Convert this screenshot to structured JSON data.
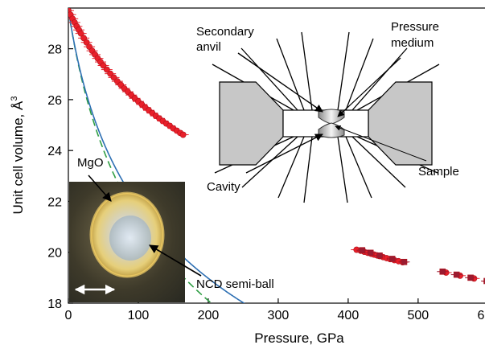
{
  "chart_data": {
    "type": "scatter",
    "xlabel": "Pressure, GPa",
    "ylabel": "Unit cell volume, Å",
    "ylabel_sup": "3",
    "xlim": [
      0,
      660
    ],
    "ylim": [
      18,
      29.6
    ],
    "xticks": [
      0,
      100,
      200,
      300,
      400,
      500,
      600
    ],
    "yticks": [
      18,
      20,
      22,
      24,
      26,
      28
    ],
    "xtick_labels": [
      "0",
      "100",
      "200",
      "300",
      "400",
      "500",
      "600"
    ],
    "ytick_labels": [
      "18",
      "20",
      "22",
      "24",
      "26",
      "28"
    ],
    "eos_params": {
      "V0": 29.55,
      "K0": 162,
      "Kp": 4.9
    },
    "dashed_params": {
      "V0": 29.55,
      "K0": 162,
      "Kp": 4.0
    },
    "series": [
      {
        "marker": "circle",
        "color": "#e8202a",
        "x": [
          0,
          3,
          6,
          9,
          12,
          15,
          18,
          22,
          26,
          30,
          34,
          38,
          42,
          46,
          50,
          55,
          60,
          65,
          70,
          75,
          80,
          85,
          90,
          95,
          100,
          105,
          110,
          115,
          120,
          125,
          130,
          135,
          140,
          145,
          150,
          155,
          160,
          164
        ],
        "y": [
          29.5,
          29.34,
          29.18,
          29.03,
          28.88,
          28.74,
          28.6,
          28.42,
          28.25,
          28.08,
          27.92,
          27.77,
          27.62,
          27.48,
          27.34,
          27.18,
          27.02,
          26.87,
          26.72,
          26.58,
          26.44,
          26.31,
          26.18,
          26.05,
          25.93,
          25.81,
          25.69,
          25.58,
          25.47,
          25.36,
          25.26,
          25.16,
          25.06,
          24.97,
          24.87,
          24.78,
          24.69,
          24.62
        ]
      },
      {
        "marker": "circle",
        "color": "#e8202a",
        "x": [
          412,
          418,
          423,
          428,
          433,
          437,
          441,
          445,
          450,
          455,
          460,
          466,
          472,
          478,
          540,
          560,
          580,
          600,
          610,
          620,
          630,
          640,
          650
        ],
        "y": [
          20.1,
          20.06,
          20.02,
          19.98,
          19.94,
          19.91,
          19.88,
          19.85,
          19.81,
          19.77,
          19.73,
          19.69,
          19.65,
          19.61,
          19.2,
          19.08,
          18.97,
          18.86,
          18.8,
          18.75,
          18.7,
          18.65,
          18.6
        ]
      },
      {
        "marker": "square",
        "color": "#9b1b30",
        "x": [
          420,
          432,
          445,
          463,
          480,
          535,
          555,
          575,
          598,
          622
        ],
        "y": [
          20.08,
          19.98,
          19.87,
          19.74,
          19.62,
          19.24,
          19.12,
          19.0,
          18.87,
          18.73
        ]
      }
    ],
    "colors": {
      "fit_line": "#2d6fb3",
      "dashed_line": "#2f9e44",
      "data_point": "#e8202a",
      "data_square": "#9b1b30",
      "anvil_gray": "#c7c7c7"
    }
  },
  "annotations": {
    "secondary_anvil": [
      "Secondary",
      "anvil"
    ],
    "pressure_medium": [
      "Pressure",
      "medium"
    ],
    "sample": "Sample",
    "cavity": "Cavity",
    "mgo": "MgO",
    "ncd": "NCD semi-ball"
  },
  "photo": {
    "scale_bar_icon": "double-arrow"
  }
}
